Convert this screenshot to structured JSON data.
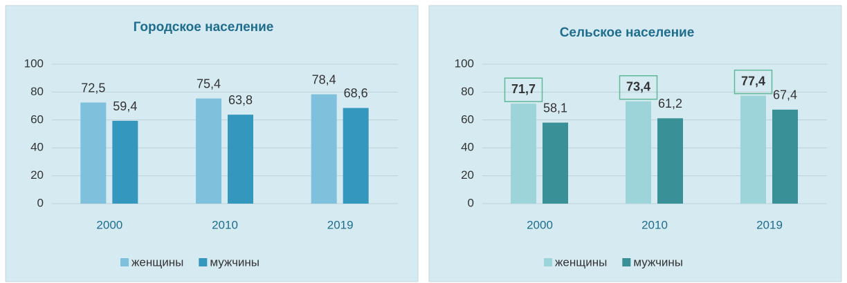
{
  "chart_data": [
    {
      "type": "bar",
      "title": "Городское население",
      "categories": [
        "2000",
        "2010",
        "2019"
      ],
      "series": [
        {
          "name": "женщины",
          "color": "#7fc1dc",
          "values": [
            72.5,
            75.4,
            78.4
          ],
          "value_labels": [
            "72,5",
            "75,4",
            "78,4"
          ]
        },
        {
          "name": "мужчины",
          "color": "#3497be",
          "values": [
            59.4,
            63.8,
            68.6
          ],
          "value_labels": [
            "59,4",
            "63,8",
            "68,6"
          ]
        }
      ],
      "ylim": [
        0,
        100
      ],
      "yticks": [
        0,
        20,
        40,
        60,
        80,
        100
      ],
      "grid": true,
      "legend": "bottom"
    },
    {
      "type": "bar",
      "title": "Сельское население",
      "categories": [
        "2000",
        "2010",
        "2019"
      ],
      "series": [
        {
          "name": "женщины",
          "color": "#9dd4d9",
          "values": [
            71.7,
            73.4,
            77.4
          ],
          "value_labels": [
            "71,7",
            "73,4",
            "77,4"
          ],
          "boxed_labels": true
        },
        {
          "name": "мужчины",
          "color": "#3a9097",
          "values": [
            58.1,
            61.2,
            67.4
          ],
          "value_labels": [
            "58,1",
            "61,2",
            "67,4"
          ]
        }
      ],
      "ylim": [
        0,
        100
      ],
      "yticks": [
        0,
        20,
        40,
        60,
        80,
        100
      ],
      "grid": true,
      "legend": "bottom"
    }
  ]
}
